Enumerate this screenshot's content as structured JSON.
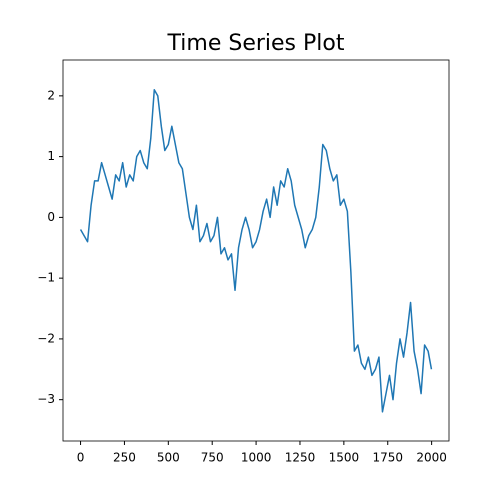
{
  "chart_data": {
    "type": "line",
    "title": "Time Series Plot",
    "x": [
      0,
      20,
      40,
      60,
      80,
      100,
      120,
      140,
      160,
      180,
      200,
      220,
      240,
      260,
      280,
      300,
      320,
      340,
      360,
      380,
      400,
      420,
      440,
      460,
      480,
      500,
      520,
      540,
      560,
      580,
      600,
      620,
      640,
      660,
      680,
      700,
      720,
      740,
      760,
      780,
      800,
      820,
      840,
      860,
      880,
      900,
      920,
      940,
      960,
      980,
      1000,
      1020,
      1040,
      1060,
      1080,
      1100,
      1120,
      1140,
      1160,
      1180,
      1200,
      1220,
      1240,
      1260,
      1280,
      1300,
      1320,
      1340,
      1360,
      1380,
      1400,
      1420,
      1440,
      1460,
      1480,
      1500,
      1520,
      1540,
      1560,
      1580,
      1600,
      1620,
      1640,
      1660,
      1680,
      1700,
      1720,
      1740,
      1760,
      1780,
      1800,
      1820,
      1840,
      1860,
      1880,
      1900,
      1920,
      1940,
      1960,
      1980,
      1999
    ],
    "series": [
      {
        "color": "#1f77b4",
        "values": [
          -0.2,
          -0.3,
          -0.4,
          0.2,
          0.6,
          0.6,
          0.9,
          0.7,
          0.5,
          0.3,
          0.7,
          0.6,
          0.9,
          0.5,
          0.7,
          0.6,
          1.0,
          1.1,
          0.9,
          0.8,
          1.3,
          2.1,
          2.0,
          1.5,
          1.1,
          1.2,
          1.5,
          1.2,
          0.9,
          0.8,
          0.4,
          0.0,
          -0.2,
          0.2,
          -0.4,
          -0.3,
          -0.1,
          -0.4,
          -0.3,
          0.0,
          -0.6,
          -0.5,
          -0.7,
          -0.6,
          -1.2,
          -0.5,
          -0.2,
          0.0,
          -0.2,
          -0.5,
          -0.4,
          -0.2,
          0.1,
          0.3,
          0.0,
          0.5,
          0.2,
          0.6,
          0.5,
          0.8,
          0.6,
          0.2,
          0.0,
          -0.2,
          -0.5,
          -0.3,
          -0.2,
          0.0,
          0.5,
          1.2,
          1.1,
          0.8,
          0.6,
          0.7,
          0.2,
          0.3,
          0.1,
          -0.9,
          -2.2,
          -2.1,
          -2.4,
          -2.5,
          -2.3,
          -2.6,
          -2.5,
          -2.3,
          -3.2,
          -2.9,
          -2.6,
          -3.0,
          -2.4,
          -2.0,
          -2.3,
          -1.9,
          -1.4,
          -2.2,
          -2.5,
          -2.9,
          -2.1,
          -2.2,
          -2.5
        ]
      }
    ],
    "xlim": [
      -100,
      2099
    ],
    "ylim": [
      -3.68,
      2.59
    ],
    "xticks": [
      0,
      250,
      500,
      750,
      1000,
      1250,
      1500,
      1750,
      2000
    ],
    "yticks": [
      {
        "value": -3,
        "label": "−3"
      },
      {
        "value": -2,
        "label": "−2"
      },
      {
        "value": -1,
        "label": "−1"
      },
      0,
      1,
      2
    ]
  }
}
